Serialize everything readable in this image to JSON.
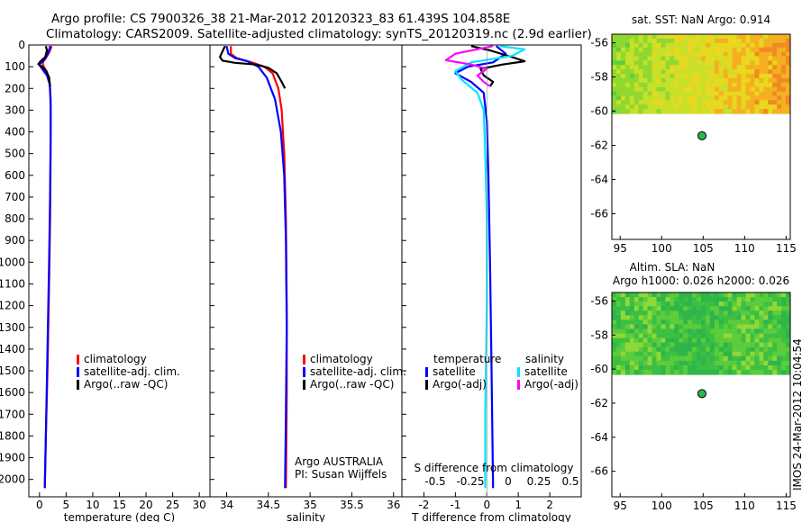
{
  "header": {
    "line1": "Argo profile: CS 7900326_38 21-Mar-2012 20120323_83 61.439S 104.858E",
    "line2": "Climatology: CARS2009. Satellite-adjusted climatology: synTS_20120319.nc (2.9d earlier)"
  },
  "colors": {
    "climatology": "#ff0000",
    "satellite": "#0000ff",
    "argo": "#000000",
    "s_satellite": "#00e5ff",
    "s_argo": "#ff00ff"
  },
  "chart_data": [
    {
      "type": "line",
      "name": "temperature-profile",
      "xlabel": "temperature (deg C)",
      "ylabel": "depth",
      "xlim": [
        -2,
        32
      ],
      "ylim": [
        2080,
        0
      ],
      "xticks": [
        "0",
        "5",
        "10",
        "15",
        "20",
        "25",
        "30"
      ],
      "yticks": [
        "0",
        "100",
        "200",
        "300",
        "400",
        "500",
        "600",
        "700",
        "800",
        "900",
        "1000",
        "1100",
        "1200",
        "1300",
        "1400",
        "1500",
        "1600",
        "1700",
        "1800",
        "1900",
        "2000"
      ],
      "legend": [
        "climatology",
        "satellite-adj. clim.",
        "Argo(..raw -QC)"
      ],
      "series": [
        {
          "name": "climatology",
          "points": [
            [
              2.3,
              5
            ],
            [
              1.9,
              30
            ],
            [
              1.2,
              60
            ],
            [
              0.6,
              80
            ],
            [
              0.7,
              95
            ],
            [
              1.3,
              120
            ],
            [
              1.8,
              160
            ],
            [
              2.0,
              200
            ],
            [
              2.1,
              300
            ],
            [
              2.1,
              500
            ],
            [
              2.0,
              800
            ],
            [
              1.8,
              1100
            ],
            [
              1.5,
              1500
            ],
            [
              1.2,
              1800
            ],
            [
              1.0,
              2040
            ]
          ]
        },
        {
          "name": "satellite-adj. clim.",
          "points": [
            [
              2.0,
              5
            ],
            [
              1.6,
              40
            ],
            [
              0.8,
              70
            ],
            [
              -0.1,
              90
            ],
            [
              0.5,
              110
            ],
            [
              1.4,
              140
            ],
            [
              1.9,
              180
            ],
            [
              2.1,
              250
            ],
            [
              2.1,
              400
            ],
            [
              2.0,
              700
            ],
            [
              1.8,
              1000
            ],
            [
              1.5,
              1400
            ],
            [
              1.2,
              1800
            ],
            [
              1.0,
              2040
            ]
          ]
        },
        {
          "name": "Argo(..raw -QC)",
          "points": [
            [
              1.2,
              5
            ],
            [
              1.4,
              25
            ],
            [
              1.1,
              55
            ],
            [
              0.2,
              75
            ],
            [
              -0.2,
              88
            ],
            [
              0.4,
              98
            ],
            [
              1.3,
              120
            ],
            [
              1.8,
              150
            ],
            [
              2.0,
              190
            ]
          ]
        }
      ]
    },
    {
      "type": "line",
      "name": "salinity-profile",
      "xlabel": "salinity",
      "xlim": [
        33.8,
        36.1
      ],
      "ylim": [
        2080,
        0
      ],
      "xticks": [
        "34",
        "34.5",
        "35",
        "35.5",
        "36"
      ],
      "legend": [
        "climatology",
        "satellite-adj. clim.",
        "Argo(..raw -QC)"
      ],
      "annotation": [
        "Argo AUSTRALIA",
        "PI: Susan Wijffels"
      ],
      "series": [
        {
          "name": "climatology",
          "points": [
            [
              34.05,
              5
            ],
            [
              34.05,
              40
            ],
            [
              34.12,
              60
            ],
            [
              34.3,
              80
            ],
            [
              34.45,
              100
            ],
            [
              34.55,
              130
            ],
            [
              34.62,
              200
            ],
            [
              34.66,
              300
            ],
            [
              34.69,
              500
            ],
            [
              34.71,
              800
            ],
            [
              34.72,
              1200
            ],
            [
              34.72,
              1600
            ],
            [
              34.71,
              2040
            ]
          ]
        },
        {
          "name": "satellite-adj. clim.",
          "points": [
            [
              34.0,
              5
            ],
            [
              34.02,
              40
            ],
            [
              34.1,
              60
            ],
            [
              34.25,
              75
            ],
            [
              34.38,
              100
            ],
            [
              34.48,
              150
            ],
            [
              34.58,
              250
            ],
            [
              34.65,
              400
            ],
            [
              34.69,
              600
            ],
            [
              34.71,
              900
            ],
            [
              34.72,
              1300
            ],
            [
              34.71,
              1700
            ],
            [
              34.7,
              2040
            ]
          ]
        },
        {
          "name": "Argo(..raw -QC)",
          "points": [
            [
              33.98,
              5
            ],
            [
              33.95,
              30
            ],
            [
              33.92,
              55
            ],
            [
              33.95,
              72
            ],
            [
              34.1,
              82
            ],
            [
              34.35,
              90
            ],
            [
              34.5,
              105
            ],
            [
              34.6,
              130
            ],
            [
              34.66,
              170
            ],
            [
              34.7,
              200
            ]
          ]
        }
      ]
    },
    {
      "type": "line",
      "name": "difference-profile",
      "xlabel": "T difference from climatology",
      "xlabel_top": "S difference from climatology",
      "xlim": [
        -2.7,
        3.0
      ],
      "ylim": [
        2080,
        0
      ],
      "xticks": [
        "-2",
        "-1",
        "0",
        "1",
        "2"
      ],
      "xticks_s": [
        "-0.5",
        "-0.25",
        "0",
        "0.25",
        "0.5"
      ],
      "legend_headers": [
        "temperature",
        "salinity"
      ],
      "legend": [
        "satellite",
        "Argo(-adj)",
        "satellite",
        "Argo(-adj)"
      ],
      "series": [
        {
          "name": "T satellite",
          "points": [
            [
              0.3,
              5
            ],
            [
              0.6,
              40
            ],
            [
              0.2,
              80
            ],
            [
              -0.6,
              100
            ],
            [
              -1.0,
              130
            ],
            [
              -0.5,
              170
            ],
            [
              -0.1,
              220
            ],
            [
              0.0,
              350
            ],
            [
              0.05,
              600
            ],
            [
              0.1,
              1000
            ],
            [
              0.15,
              1500
            ],
            [
              0.2,
              2040
            ]
          ]
        },
        {
          "name": "T Argo(-adj)",
          "points": [
            [
              -0.5,
              5
            ],
            [
              0.1,
              25
            ],
            [
              0.9,
              60
            ],
            [
              1.2,
              75
            ],
            [
              0.5,
              90
            ],
            [
              -0.2,
              110
            ],
            [
              -0.1,
              140
            ],
            [
              0.2,
              170
            ],
            [
              0.1,
              190
            ]
          ]
        },
        {
          "name": "S satellite",
          "points": [
            [
              0.4,
              5
            ],
            [
              1.2,
              20
            ],
            [
              0.8,
              50
            ],
            [
              -0.5,
              80
            ],
            [
              -1.0,
              120
            ],
            [
              -0.8,
              160
            ],
            [
              -0.3,
              220
            ],
            [
              -0.1,
              300
            ],
            [
              -0.05,
              500
            ],
            [
              0.0,
              800
            ],
            [
              0.0,
              1200
            ],
            [
              -0.05,
              1700
            ],
            [
              -0.05,
              2040
            ]
          ]
        },
        {
          "name": "S Argo(-adj)",
          "points": [
            [
              0.2,
              5
            ],
            [
              -1.0,
              40
            ],
            [
              -1.3,
              70
            ],
            [
              -0.5,
              90
            ],
            [
              0.0,
              110
            ],
            [
              -0.3,
              140
            ],
            [
              -0.1,
              170
            ],
            [
              0.1,
              190
            ]
          ]
        }
      ]
    },
    {
      "type": "heatmap",
      "name": "sst-map",
      "title": "sat. SST: NaN Argo: 0.914",
      "xlim": [
        94,
        115.5
      ],
      "ylim": [
        -67.5,
        -55.5
      ],
      "xticks": [
        "95",
        "100",
        "105",
        "110",
        "115"
      ],
      "yticks": [
        "-56",
        "-58",
        "-60",
        "-62",
        "-64",
        "-66"
      ],
      "argo_position": {
        "lon": 104.858,
        "lat": -61.439
      },
      "palette": [
        "#5fcf3a",
        "#8fd830",
        "#c8e02a",
        "#e8d820",
        "#f4b020",
        "#f08a24"
      ]
    },
    {
      "type": "heatmap",
      "name": "sla-map",
      "title": "Altim. SLA: NaN",
      "subtitle": "Argo h1000: 0.026 h2000: 0.026",
      "xlim": [
        94,
        115.5
      ],
      "ylim": [
        -67.5,
        -55.5
      ],
      "xticks": [
        "95",
        "100",
        "105",
        "110",
        "115"
      ],
      "yticks": [
        "-56",
        "-58",
        "-60",
        "-62",
        "-64",
        "-66"
      ],
      "argo_position": {
        "lon": 104.858,
        "lat": -61.439
      },
      "palette": [
        "#2fb54a",
        "#3cc043",
        "#5ccc3c",
        "#8fd838",
        "#c8e030",
        "#f0c020"
      ]
    }
  ],
  "footer": {
    "stamp": "IMOS 24-Mar-2012 10:04:54"
  }
}
